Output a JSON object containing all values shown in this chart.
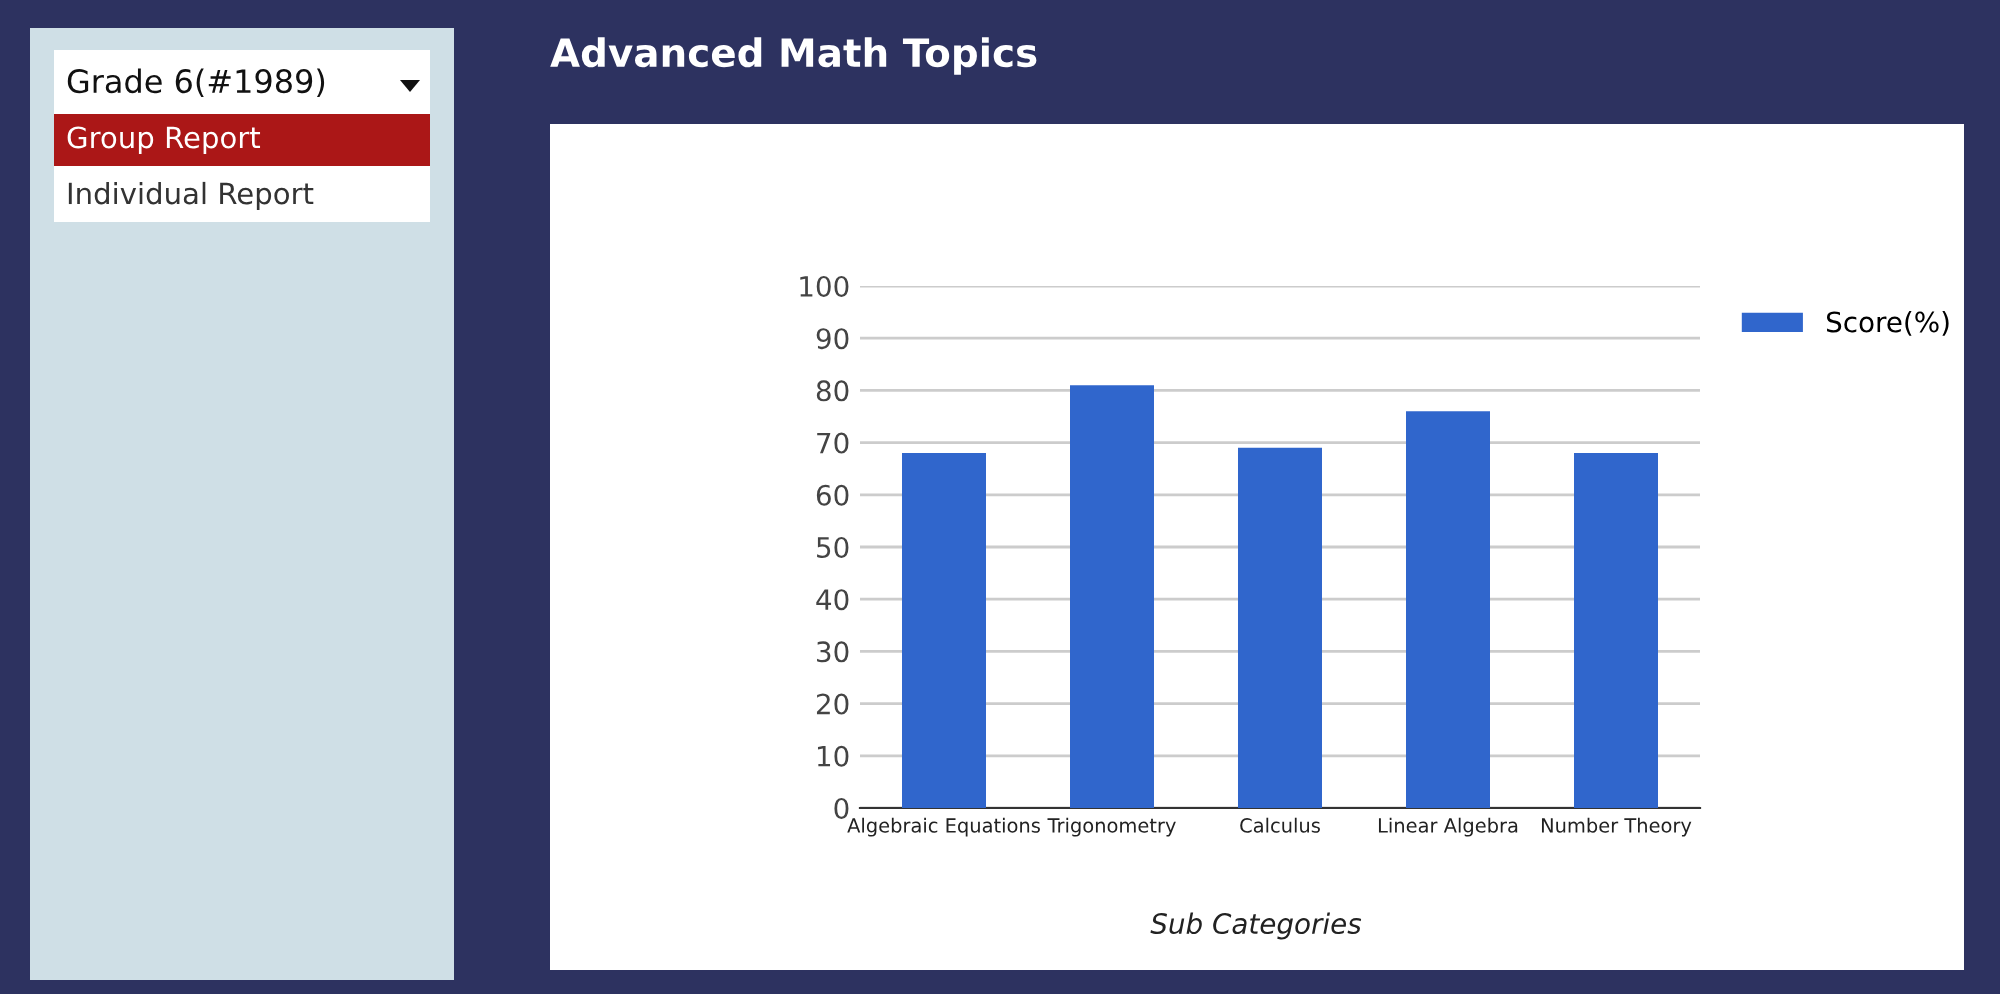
{
  "chart_data": {
    "type": "bar",
    "title": "Advanced Math Topics",
    "xlabel": "Sub Categories",
    "categories": [
      "Algebraic Equations",
      "Trigonometry",
      "Calculus",
      "Linear Algebra",
      "Number Theory"
    ],
    "series": [
      {
        "name": "Score(%)",
        "color": "#3066cc",
        "values": [
          68,
          81,
          69,
          76,
          68
        ]
      }
    ],
    "ylim": [
      0,
      100
    ],
    "yticks": [
      0,
      10,
      20,
      30,
      40,
      50,
      60,
      70,
      80,
      90,
      100
    ],
    "grid": "y",
    "legend": "top right",
    "annotations": [
      "Grade 6(#1989)",
      "Group Report",
      "Individual Report"
    ]
  }
}
